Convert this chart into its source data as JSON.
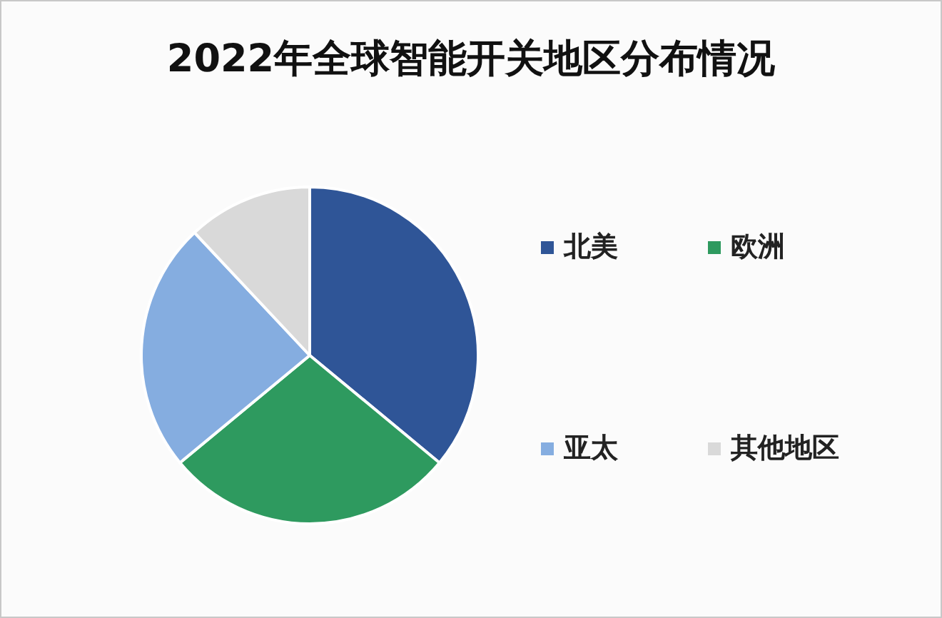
{
  "chart_data": {
    "type": "pie",
    "title": "2022年全球智能开关地区分布情况",
    "categories": [
      "北美",
      "欧洲",
      "亚太",
      "其他地区"
    ],
    "values": [
      36,
      28,
      24,
      12
    ],
    "colors": [
      "#2f5597",
      "#2e9a5f",
      "#85ade0",
      "#d9d9d9"
    ],
    "legend": "right"
  }
}
